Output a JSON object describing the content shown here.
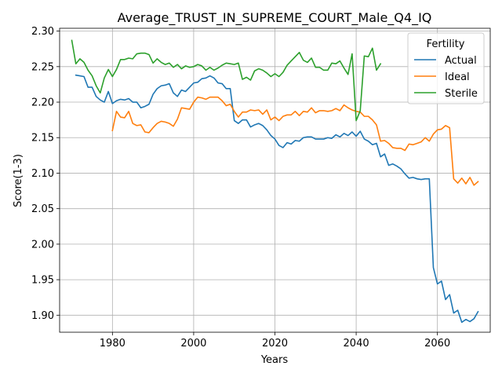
{
  "chart_data": {
    "type": "line",
    "title": "Average_TRUST_IN_SUPREME_COURT_Male_Q4_IQ",
    "xlabel": "Years",
    "ylabel": "Score(1-3)",
    "xlim": [
      1967,
      2073
    ],
    "ylim": [
      1.876,
      2.304
    ],
    "xticks": [
      1980,
      2000,
      2020,
      2040,
      2060
    ],
    "yticks": [
      1.9,
      1.95,
      2.0,
      2.05,
      2.1,
      2.15,
      2.2,
      2.25,
      2.3
    ],
    "ytick_labels": [
      "1.90",
      "1.95",
      "2.00",
      "2.05",
      "2.10",
      "2.15",
      "2.20",
      "2.25",
      "2.30"
    ],
    "grid": true,
    "legend": {
      "title": "Fertility",
      "position": "top-right"
    },
    "series": [
      {
        "name": "Actual",
        "color": "#1f77b4",
        "x": [
          1971,
          1972,
          1973,
          1974,
          1975,
          1976,
          1977,
          1978,
          1979,
          1980,
          1981,
          1982,
          1983,
          1984,
          1985,
          1986,
          1987,
          1988,
          1989,
          1990,
          1991,
          1992,
          1993,
          1994,
          1995,
          1996,
          1997,
          1998,
          1999,
          2000,
          2001,
          2002,
          2003,
          2004,
          2005,
          2006,
          2007,
          2008,
          2009,
          2010,
          2011,
          2012,
          2013,
          2014,
          2015,
          2016,
          2017,
          2018,
          2019,
          2020,
          2021,
          2022,
          2023,
          2024,
          2025,
          2026,
          2027,
          2028,
          2029,
          2030,
          2031,
          2032,
          2033,
          2034,
          2035,
          2036,
          2037,
          2038,
          2039,
          2040,
          2041,
          2042,
          2043,
          2044,
          2045,
          2046,
          2047,
          2048,
          2049,
          2050,
          2051,
          2052,
          2053,
          2054,
          2055,
          2056,
          2057,
          2058,
          2059,
          2060,
          2061,
          2062,
          2063,
          2064,
          2065,
          2066,
          2067,
          2068,
          2069,
          2070
        ],
        "values": [
          2.238,
          2.237,
          2.236,
          2.221,
          2.221,
          2.208,
          2.203,
          2.2,
          2.215,
          2.198,
          2.202,
          2.204,
          2.203,
          2.205,
          2.2,
          2.2,
          2.192,
          2.194,
          2.197,
          2.211,
          2.219,
          2.223,
          2.224,
          2.226,
          2.213,
          2.208,
          2.217,
          2.215,
          2.221,
          2.227,
          2.228,
          2.233,
          2.234,
          2.237,
          2.234,
          2.227,
          2.226,
          2.219,
          2.219,
          2.174,
          2.17,
          2.175,
          2.175,
          2.165,
          2.168,
          2.17,
          2.167,
          2.161,
          2.153,
          2.148,
          2.139,
          2.136,
          2.143,
          2.141,
          2.146,
          2.145,
          2.15,
          2.151,
          2.151,
          2.148,
          2.148,
          2.148,
          2.15,
          2.149,
          2.154,
          2.151,
          2.156,
          2.153,
          2.158,
          2.152,
          2.159,
          2.148,
          2.145,
          2.14,
          2.142,
          2.123,
          2.127,
          2.111,
          2.113,
          2.11,
          2.106,
          2.099,
          2.093,
          2.094,
          2.092,
          2.091,
          2.092,
          2.092,
          1.967,
          1.944,
          1.948,
          1.922,
          1.929,
          1.903,
          1.907,
          1.89,
          1.894,
          1.891,
          1.895,
          1.905
        ]
      },
      {
        "name": "Ideal",
        "color": "#ff7f0e",
        "x": [
          1980,
          1981,
          1982,
          1983,
          1984,
          1985,
          1986,
          1987,
          1988,
          1989,
          1990,
          1991,
          1992,
          1993,
          1994,
          1995,
          1996,
          1997,
          1998,
          1999,
          2000,
          2001,
          2002,
          2003,
          2004,
          2005,
          2006,
          2007,
          2008,
          2009,
          2010,
          2011,
          2012,
          2013,
          2014,
          2015,
          2016,
          2017,
          2018,
          2019,
          2020,
          2021,
          2022,
          2023,
          2024,
          2025,
          2026,
          2027,
          2028,
          2029,
          2030,
          2031,
          2032,
          2033,
          2034,
          2035,
          2036,
          2037,
          2038,
          2039,
          2040,
          2041,
          2042,
          2043,
          2044,
          2045,
          2046,
          2047,
          2048,
          2049,
          2050,
          2051,
          2052,
          2053,
          2054,
          2055,
          2056,
          2057,
          2058,
          2059,
          2060,
          2061,
          2062,
          2063,
          2064,
          2065,
          2066,
          2067,
          2068,
          2069,
          2070
        ],
        "values": [
          2.16,
          2.187,
          2.179,
          2.178,
          2.187,
          2.17,
          2.167,
          2.168,
          2.158,
          2.157,
          2.164,
          2.17,
          2.173,
          2.172,
          2.17,
          2.166,
          2.176,
          2.192,
          2.191,
          2.19,
          2.2,
          2.207,
          2.206,
          2.204,
          2.207,
          2.207,
          2.207,
          2.202,
          2.195,
          2.197,
          2.187,
          2.179,
          2.186,
          2.186,
          2.189,
          2.188,
          2.189,
          2.183,
          2.189,
          2.175,
          2.179,
          2.174,
          2.18,
          2.182,
          2.182,
          2.187,
          2.181,
          2.187,
          2.186,
          2.192,
          2.185,
          2.188,
          2.188,
          2.187,
          2.188,
          2.191,
          2.188,
          2.196,
          2.192,
          2.189,
          2.187,
          2.186,
          2.18,
          2.18,
          2.175,
          2.168,
          2.145,
          2.146,
          2.142,
          2.136,
          2.135,
          2.135,
          2.132,
          2.141,
          2.14,
          2.142,
          2.144,
          2.15,
          2.145,
          2.155,
          2.161,
          2.162,
          2.167,
          2.164,
          2.092,
          2.086,
          2.093,
          2.085,
          2.094,
          2.083,
          2.088
        ]
      },
      {
        "name": "Sterile",
        "color": "#2ca02c",
        "x": [
          1970,
          1971,
          1972,
          1973,
          1974,
          1975,
          1976,
          1977,
          1978,
          1979,
          1980,
          1981,
          1982,
          1983,
          1984,
          1985,
          1986,
          1987,
          1988,
          1989,
          1990,
          1991,
          1992,
          1993,
          1994,
          1995,
          1996,
          1997,
          1998,
          1999,
          2000,
          2001,
          2002,
          2003,
          2004,
          2005,
          2006,
          2007,
          2008,
          2009,
          2010,
          2011,
          2012,
          2013,
          2014,
          2015,
          2016,
          2017,
          2018,
          2019,
          2020,
          2021,
          2022,
          2023,
          2024,
          2025,
          2026,
          2027,
          2028,
          2029,
          2030,
          2031,
          2032,
          2033,
          2034,
          2035,
          2036,
          2037,
          2038,
          2039,
          2040,
          2041,
          2042,
          2043,
          2044,
          2045,
          2046
        ],
        "values": [
          2.287,
          2.254,
          2.261,
          2.256,
          2.245,
          2.237,
          2.223,
          2.213,
          2.234,
          2.246,
          2.236,
          2.246,
          2.26,
          2.26,
          2.262,
          2.261,
          2.268,
          2.269,
          2.269,
          2.267,
          2.255,
          2.261,
          2.256,
          2.253,
          2.255,
          2.249,
          2.253,
          2.247,
          2.251,
          2.249,
          2.25,
          2.253,
          2.251,
          2.245,
          2.249,
          2.245,
          2.248,
          2.252,
          2.255,
          2.254,
          2.253,
          2.255,
          2.232,
          2.235,
          2.231,
          2.244,
          2.247,
          2.245,
          2.241,
          2.236,
          2.24,
          2.236,
          2.242,
          2.252,
          2.258,
          2.264,
          2.27,
          2.259,
          2.256,
          2.262,
          2.249,
          2.249,
          2.245,
          2.245,
          2.255,
          2.254,
          2.258,
          2.248,
          2.239,
          2.268,
          2.174,
          2.188,
          2.265,
          2.264,
          2.276,
          2.245,
          2.254
        ]
      }
    ]
  }
}
